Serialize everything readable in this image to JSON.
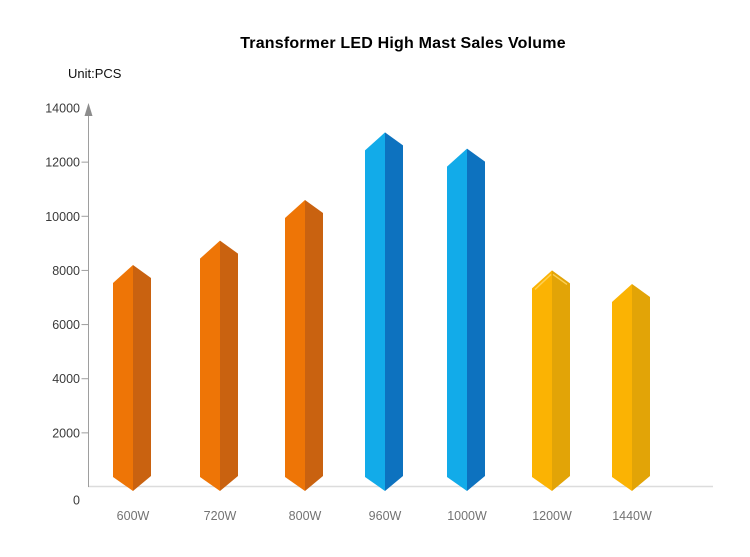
{
  "page": {
    "background": "#FFFFFF"
  },
  "chart_data": {
    "type": "bar",
    "title": "Transformer LED High Mast Sales Volume",
    "unit_label": "Unit:PCS",
    "categories": [
      "600W",
      "720W",
      "800W",
      "960W",
      "1000W",
      "1200W",
      "1440W"
    ],
    "values": [
      8200,
      9100,
      10600,
      13100,
      12500,
      8000,
      7500
    ],
    "bar_colors": [
      {
        "left": "#EE7506",
        "right": "#C96210"
      },
      {
        "left": "#EE7506",
        "right": "#C96210"
      },
      {
        "left": "#EE7506",
        "right": "#C96210"
      },
      {
        "left": "#12ABE9",
        "right": "#0D72BF"
      },
      {
        "left": "#12ABE9",
        "right": "#0D72BF"
      },
      {
        "left": "#FBB303",
        "right": "#E2A407",
        "cap_highlight": "#FFD45C"
      },
      {
        "left": "#FBB303",
        "right": "#E2A407"
      }
    ],
    "xlabel": "",
    "ylabel": "",
    "ylim": [
      0,
      14000
    ],
    "yticks": [
      0,
      2000,
      4000,
      6000,
      8000,
      10000,
      12000,
      14000
    ],
    "grid": false,
    "legend": "none",
    "bar_style": "3d-prism-pointed-top-and-bottom",
    "colors": {
      "axis": "#9E9E9E",
      "arrow": "#8C8C8C",
      "baseline": "#DCDCDC",
      "ytick_labels": "#3A3A3A",
      "xtick_labels": "#737373",
      "title": "#000000"
    }
  }
}
